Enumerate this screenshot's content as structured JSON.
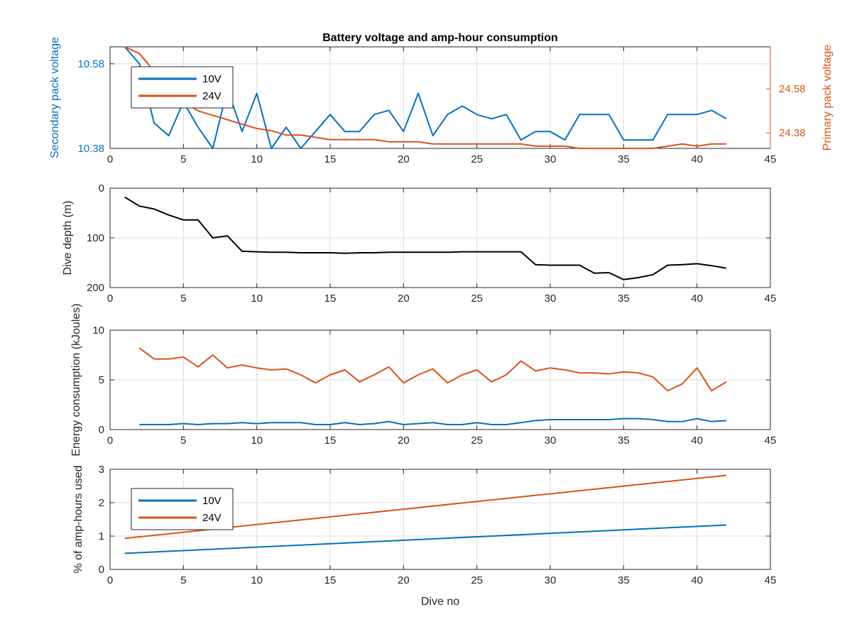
{
  "colors": {
    "blue": "#0072BD",
    "orange": "#D95319",
    "black": "#000000",
    "axis": "#262626",
    "grid": "#dcdcdc"
  },
  "chart_data": [
    {
      "type": "line",
      "title": "Battery voltage and amp-hour consumption",
      "xlabel": "",
      "ylabel": "Secondary pack voltage",
      "y2label": "Primary pack voltage",
      "xlim": [
        0,
        45
      ],
      "ylim": [
        10.38,
        10.62
      ],
      "y2lim": [
        24.31,
        24.77
      ],
      "xticks": [
        "0",
        "5",
        "10",
        "15",
        "20",
        "25",
        "30",
        "35",
        "40",
        "45"
      ],
      "yticks": [
        "10.38",
        "10.58"
      ],
      "y2ticks": [
        "24.38",
        "24.58"
      ],
      "grid": true,
      "legend": {
        "position": "top-left",
        "entries": [
          "10V",
          "24V"
        ]
      },
      "series": [
        {
          "name": "10V",
          "axis": "left",
          "color": "#0072BD",
          "x": [
            1,
            2,
            3,
            4,
            5,
            6,
            7,
            8,
            9,
            10,
            11,
            12,
            13,
            14,
            15,
            16,
            17,
            18,
            19,
            20,
            21,
            22,
            23,
            24,
            25,
            26,
            27,
            28,
            29,
            30,
            31,
            32,
            33,
            34,
            35,
            36,
            37,
            38,
            39,
            40,
            41,
            42
          ],
          "y": [
            10.62,
            10.58,
            10.44,
            10.41,
            10.49,
            10.43,
            10.38,
            10.52,
            10.42,
            10.51,
            10.38,
            10.43,
            10.38,
            10.42,
            10.46,
            10.42,
            10.42,
            10.46,
            10.47,
            10.42,
            10.51,
            10.41,
            10.46,
            10.48,
            10.46,
            10.45,
            10.46,
            10.4,
            10.42,
            10.42,
            10.4,
            10.46,
            10.46,
            10.46,
            10.4,
            10.4,
            10.4,
            10.46,
            10.46,
            10.46,
            10.47,
            10.45
          ]
        },
        {
          "name": "24V",
          "axis": "right",
          "color": "#D95319",
          "x": [
            1,
            2,
            3,
            4,
            5,
            6,
            7,
            8,
            9,
            10,
            11,
            12,
            13,
            14,
            15,
            16,
            17,
            18,
            19,
            20,
            21,
            22,
            23,
            24,
            25,
            26,
            27,
            28,
            29,
            30,
            31,
            32,
            33,
            34,
            35,
            36,
            37,
            38,
            39,
            40,
            41,
            42
          ],
          "y": [
            24.77,
            24.74,
            24.66,
            24.58,
            24.52,
            24.48,
            24.46,
            24.44,
            24.42,
            24.4,
            24.39,
            24.37,
            24.37,
            24.36,
            24.35,
            24.35,
            24.35,
            24.35,
            24.34,
            24.34,
            24.34,
            24.33,
            24.33,
            24.33,
            24.33,
            24.33,
            24.33,
            24.33,
            24.32,
            24.32,
            24.32,
            24.31,
            24.31,
            24.31,
            24.31,
            24.31,
            24.31,
            24.32,
            24.33,
            24.32,
            24.33,
            24.33
          ]
        }
      ]
    },
    {
      "type": "line",
      "title": "",
      "xlabel": "",
      "ylabel": "Dive depth (m)",
      "xlim": [
        0,
        45
      ],
      "ylim": [
        200,
        0
      ],
      "reversed_y": true,
      "xticks": [
        "0",
        "5",
        "10",
        "15",
        "20",
        "25",
        "30",
        "35",
        "40",
        "45"
      ],
      "yticks": [
        "0",
        "100",
        "200"
      ],
      "grid": true,
      "series": [
        {
          "color": "#000000",
          "x": [
            1,
            2,
            3,
            4,
            5,
            6,
            7,
            8,
            9,
            10,
            11,
            12,
            13,
            14,
            15,
            16,
            17,
            18,
            19,
            20,
            21,
            22,
            23,
            24,
            25,
            26,
            27,
            28,
            29,
            30,
            31,
            32,
            33,
            34,
            35,
            36,
            37,
            38,
            39,
            40,
            41,
            42
          ],
          "y": [
            18,
            36,
            42,
            54,
            64,
            64,
            100,
            96,
            127,
            128,
            129,
            129,
            130,
            130,
            130,
            131,
            130,
            130,
            129,
            129,
            129,
            129,
            129,
            128,
            128,
            128,
            128,
            128,
            154,
            155,
            155,
            155,
            171,
            170,
            184,
            180,
            174,
            155,
            154,
            152,
            156,
            161
          ]
        }
      ]
    },
    {
      "type": "line",
      "title": "",
      "xlabel": "",
      "ylabel": "Energy consumption (kJoules)",
      "xlim": [
        0,
        45
      ],
      "ylim": [
        0,
        10
      ],
      "xticks": [
        "0",
        "5",
        "10",
        "15",
        "20",
        "25",
        "30",
        "35",
        "40",
        "45"
      ],
      "yticks": [
        "0",
        "5",
        "10"
      ],
      "grid": true,
      "series": [
        {
          "color": "#0072BD",
          "x": [
            2,
            3,
            4,
            5,
            6,
            7,
            8,
            9,
            10,
            11,
            12,
            13,
            14,
            15,
            16,
            17,
            18,
            19,
            20,
            21,
            22,
            23,
            24,
            25,
            26,
            27,
            28,
            29,
            30,
            31,
            32,
            33,
            34,
            35,
            36,
            37,
            38,
            39,
            40,
            41,
            42
          ],
          "y": [
            0.5,
            0.5,
            0.5,
            0.6,
            0.5,
            0.6,
            0.6,
            0.7,
            0.6,
            0.7,
            0.7,
            0.7,
            0.5,
            0.5,
            0.7,
            0.5,
            0.6,
            0.8,
            0.5,
            0.6,
            0.7,
            0.5,
            0.5,
            0.7,
            0.5,
            0.5,
            0.7,
            0.9,
            1.0,
            1.0,
            1.0,
            1.0,
            1.0,
            1.1,
            1.1,
            1.0,
            0.8,
            0.8,
            1.1,
            0.8,
            0.9
          ]
        },
        {
          "color": "#D95319",
          "x": [
            2,
            3,
            4,
            5,
            6,
            7,
            8,
            9,
            10,
            11,
            12,
            13,
            14,
            15,
            16,
            17,
            18,
            19,
            20,
            21,
            22,
            23,
            24,
            25,
            26,
            27,
            28,
            29,
            30,
            31,
            32,
            33,
            34,
            35,
            36,
            37,
            38,
            39,
            40,
            41,
            42
          ],
          "y": [
            8.2,
            7.1,
            7.1,
            7.3,
            6.3,
            7.5,
            6.2,
            6.5,
            6.2,
            6.0,
            6.1,
            5.5,
            4.7,
            5.5,
            6.0,
            4.8,
            5.5,
            6.3,
            4.7,
            5.5,
            6.1,
            4.7,
            5.5,
            6.0,
            4.8,
            5.5,
            6.9,
            5.9,
            6.2,
            6.0,
            5.7,
            5.7,
            5.6,
            5.8,
            5.7,
            5.3,
            3.9,
            4.6,
            6.2,
            3.9,
            4.8
          ]
        }
      ]
    },
    {
      "type": "line",
      "title": "",
      "xlabel": "Dive no",
      "ylabel": "% of amp-hours used",
      "xlim": [
        0,
        45
      ],
      "ylim": [
        0,
        3
      ],
      "xticks": [
        "0",
        "5",
        "10",
        "15",
        "20",
        "25",
        "30",
        "35",
        "40",
        "45"
      ],
      "yticks": [
        "0",
        "1",
        "2",
        "3"
      ],
      "grid": true,
      "legend": {
        "position": "left",
        "entries": [
          "10V",
          "24V"
        ]
      },
      "series": [
        {
          "name": "10V",
          "color": "#0072BD",
          "x": [
            1,
            42
          ],
          "y": [
            0.48,
            1.33
          ]
        },
        {
          "name": "24V",
          "color": "#D95319",
          "x": [
            1,
            42
          ],
          "y": [
            0.93,
            2.82
          ]
        }
      ]
    }
  ]
}
